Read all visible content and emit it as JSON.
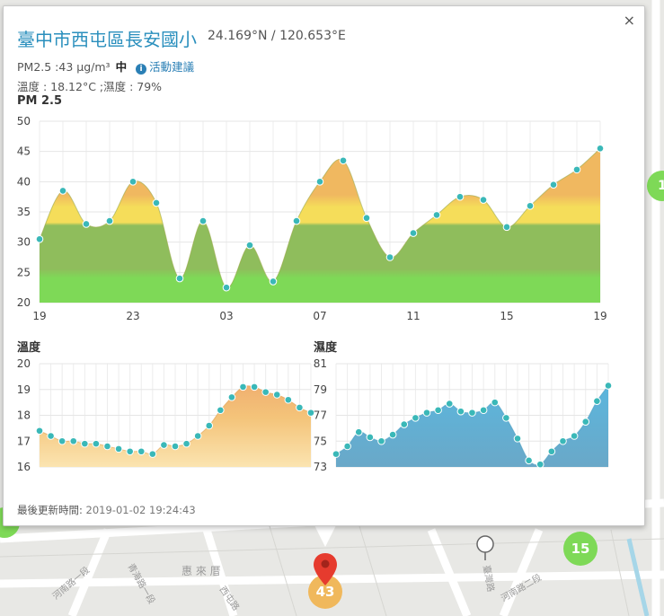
{
  "popup": {
    "title": "臺中市西屯區長安國小",
    "coords": "24.169°N / 120.653°E",
    "pm_text": "PM2.5 :43 μg/m³",
    "pm_level": "中",
    "advice_label": "活動建議",
    "info_icon": "info-circle-icon",
    "temp_humidity": "溫度 : 18.12°C ;濕度 : 79%",
    "pm_chart_label": "PM 2.5",
    "temp_chart_label": "溫度",
    "humidity_chart_label": "濕度",
    "updated_label": "最後更新時間:",
    "updated_value": "2019-01-02 19:24:43",
    "close_icon": "close-icon",
    "close_label": "×"
  },
  "map": {
    "labels": [
      "惠 來 厝",
      "河南路一段",
      "西屯路",
      "青海路一段",
      "臺灣路",
      "河南路二段"
    ],
    "markers": [
      {
        "label": "43",
        "color": "#f0b85c"
      },
      {
        "label": "15",
        "color": "#7ed957"
      },
      {
        "label": "1",
        "color": "#7ed957"
      }
    ]
  },
  "colors": {
    "title": "#2a8fbd",
    "point": "#3ab8b8",
    "good": "#7ed957",
    "moderate": "#f5dd5a",
    "high": "#f0b860",
    "temp_fill": "#f5c97a",
    "humidity_fill": "#6ab8d8"
  },
  "chart_data": [
    {
      "type": "area",
      "name": "pm25",
      "title": "PM 2.5",
      "x_ticks": [
        "19",
        "23",
        "03",
        "07",
        "11",
        "15",
        "19"
      ],
      "ylim": [
        20,
        50
      ],
      "y_ticks": [
        20,
        25,
        30,
        35,
        40,
        45,
        50
      ],
      "grid": true,
      "values": [
        30.5,
        38.5,
        33,
        33.5,
        40,
        36.5,
        24,
        33.5,
        22.5,
        29.5,
        23.5,
        33.5,
        40,
        43.5,
        34,
        27.5,
        31.5,
        34.5,
        37.5,
        37,
        32.5,
        36,
        39.5,
        42,
        45.5
      ]
    },
    {
      "type": "area",
      "name": "temperature",
      "title": "溫度",
      "ylim": [
        16,
        20
      ],
      "y_ticks": [
        16,
        17,
        18,
        19,
        20
      ],
      "grid": true,
      "values": [
        17.4,
        17.2,
        17.0,
        17.0,
        16.9,
        16.9,
        16.8,
        16.7,
        16.6,
        16.6,
        16.5,
        16.85,
        16.8,
        16.9,
        17.2,
        17.6,
        18.2,
        18.7,
        19.1,
        19.1,
        18.9,
        18.8,
        18.6,
        18.3,
        18.1
      ]
    },
    {
      "type": "area",
      "name": "humidity",
      "title": "濕度",
      "ylim": [
        73,
        81
      ],
      "y_ticks": [
        73,
        75,
        77,
        79,
        81
      ],
      "grid": true,
      "values": [
        74.0,
        74.6,
        75.7,
        75.3,
        75.0,
        75.5,
        76.3,
        76.8,
        77.2,
        77.4,
        77.9,
        77.3,
        77.2,
        77.4,
        78.0,
        76.8,
        75.2,
        73.5,
        73.2,
        74.2,
        75.0,
        75.4,
        76.5,
        78.1,
        79.3
      ]
    }
  ]
}
